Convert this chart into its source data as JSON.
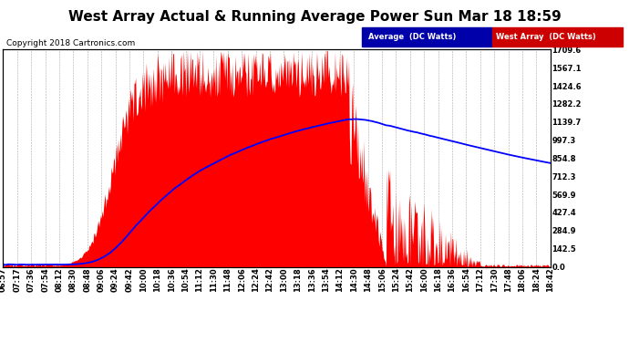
{
  "title": "West Array Actual & Running Average Power Sun Mar 18 18:59",
  "copyright": "Copyright 2018 Cartronics.com",
  "ylabel_right_values": [
    0.0,
    142.5,
    284.9,
    427.4,
    569.9,
    712.3,
    854.8,
    997.3,
    1139.7,
    1282.2,
    1424.6,
    1567.1,
    1709.6
  ],
  "ymax": 1709.6,
  "ymin": 0.0,
  "legend_label_avg": "Average  (DC Watts)",
  "legend_label_west": "West Array  (DC Watts)",
  "legend_color_avg": "#0000CC",
  "legend_color_west": "#CC0000",
  "legend_bg_avg": "#0000AA",
  "legend_bg_west": "#CC0000",
  "fill_color": "#FF0000",
  "line_color": "#0000FF",
  "background_color": "#FFFFFF",
  "grid_color": "#AAAAAA",
  "title_fontsize": 11,
  "copyright_fontsize": 6.5,
  "tick_label_fontsize": 6,
  "n_points": 720,
  "x_ticks_labels": [
    "06:57",
    "07:17",
    "07:36",
    "07:54",
    "08:12",
    "08:30",
    "08:48",
    "09:06",
    "09:24",
    "09:42",
    "10:00",
    "10:18",
    "10:36",
    "10:54",
    "11:12",
    "11:30",
    "11:48",
    "12:06",
    "12:24",
    "12:42",
    "13:00",
    "13:18",
    "13:36",
    "13:54",
    "14:12",
    "14:30",
    "14:48",
    "15:06",
    "15:24",
    "15:42",
    "16:00",
    "16:18",
    "16:36",
    "16:54",
    "17:12",
    "17:30",
    "17:48",
    "18:06",
    "18:24",
    "18:42"
  ]
}
